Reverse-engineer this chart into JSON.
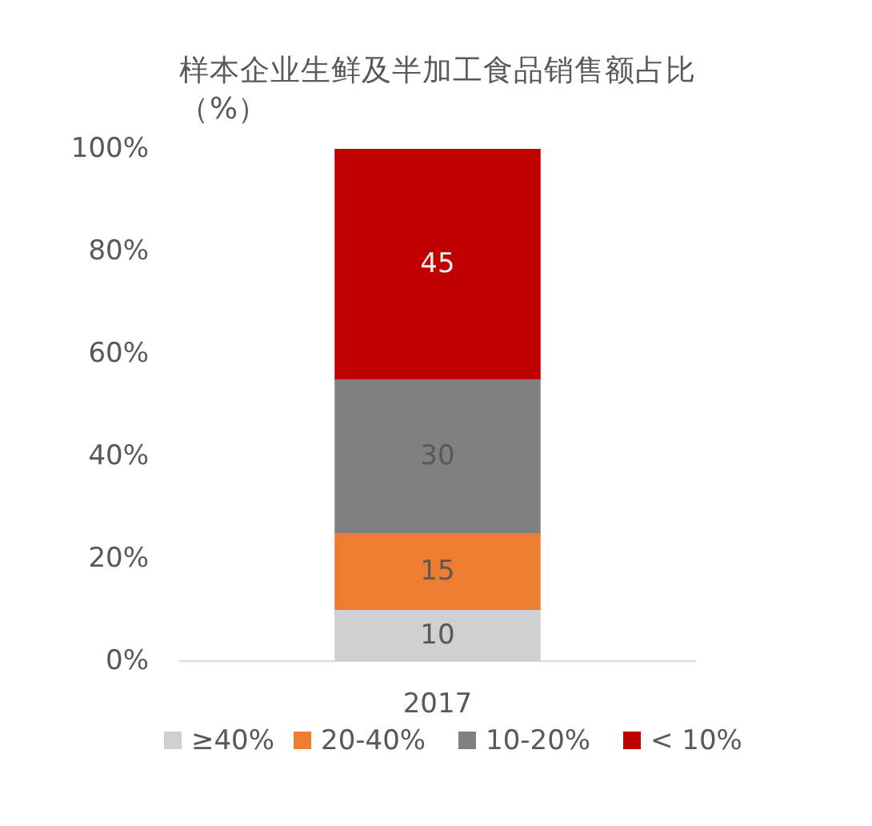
{
  "chart_data": {
    "type": "bar",
    "title": "样本企业生鲜及半加工食品销售额占比（%）",
    "categories": [
      "2017"
    ],
    "series": [
      {
        "name": "≥40%",
        "color": "#d0d0d0",
        "values": [
          10
        ]
      },
      {
        "name": "20-40%",
        "color": "#ed7d31",
        "values": [
          15
        ]
      },
      {
        "name": "10-20%",
        "color": "#808080",
        "values": [
          30
        ]
      },
      {
        "name": "< 10%",
        "color": "#c00000",
        "values": [
          45
        ]
      }
    ],
    "stacked": true,
    "ylim": [
      0,
      100
    ],
    "yticks": [
      {
        "value": 0,
        "label": "0%"
      },
      {
        "value": 20,
        "label": "20%"
      },
      {
        "value": 40,
        "label": "40%"
      },
      {
        "value": 60,
        "label": "60%"
      },
      {
        "value": 80,
        "label": "80%"
      },
      {
        "value": 100,
        "label": "100%"
      }
    ],
    "data_labels": true,
    "legend": "bottom",
    "grid": false
  }
}
